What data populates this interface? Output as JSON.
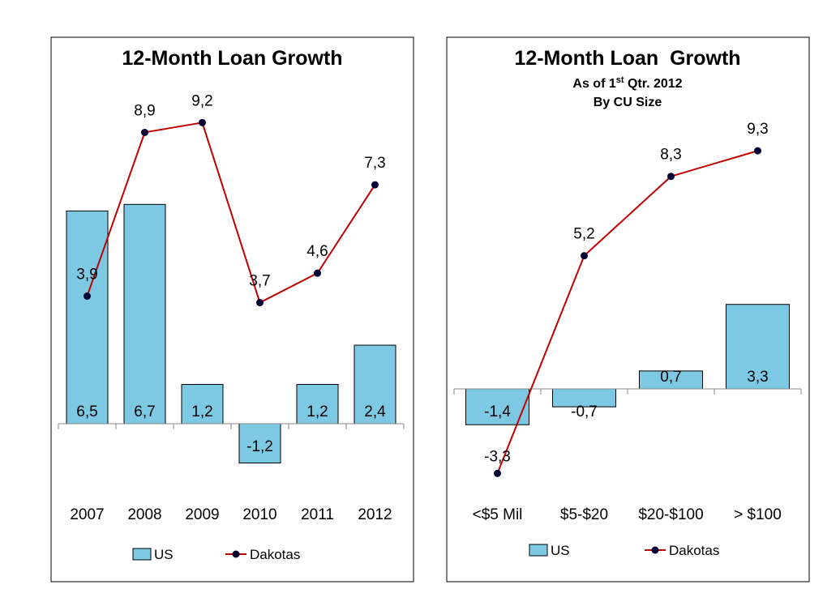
{
  "chart_data": [
    {
      "type": "bar",
      "title": "12-Month Loan Growth",
      "categories": [
        "2007",
        "2008",
        "2009",
        "2010",
        "2011",
        "2012"
      ],
      "series": [
        {
          "name": "US",
          "kind": "bar",
          "color": "#7DC8E3",
          "values": [
            6.5,
            6.7,
            1.2,
            -1.2,
            1.2,
            2.4
          ],
          "labels": [
            "6,5",
            "6,7",
            "1,2",
            "-1,2",
            "1,2",
            "2,4"
          ]
        },
        {
          "name": "Dakotas",
          "kind": "line",
          "color": "#C00000",
          "values": [
            3.9,
            8.9,
            9.2,
            3.7,
            4.6,
            7.3
          ],
          "labels": [
            "3,9",
            "8,9",
            "9,2",
            "3,7",
            "4,6",
            "7,3"
          ]
        }
      ],
      "ylim": [
        -1.5,
        11.0
      ],
      "grid": false,
      "legend": "bottom"
    },
    {
      "type": "bar",
      "title": "12-Month Loan  Growth",
      "subtitle_parts": [
        "As of 1",
        "st",
        " Qtr. 2012"
      ],
      "subtitle2": "By CU Size",
      "categories": [
        "<$5 Mil",
        "$5-$20",
        "$20-$100",
        "> $100"
      ],
      "series": [
        {
          "name": "US",
          "kind": "bar",
          "color": "#7DC8E3",
          "values": [
            -1.4,
            -0.7,
            0.7,
            3.3
          ],
          "labels": [
            "-1,4",
            "-0,7",
            "0,7",
            "3,3"
          ]
        },
        {
          "name": "Dakotas",
          "kind": "line",
          "color": "#C00000",
          "values": [
            -3.3,
            5.2,
            8.3,
            9.3
          ],
          "labels": [
            "-3,3",
            "5,2",
            "8,3",
            "9,3"
          ]
        }
      ],
      "ylim": [
        -4.5,
        12.0
      ],
      "grid": false,
      "legend": "bottom"
    }
  ]
}
